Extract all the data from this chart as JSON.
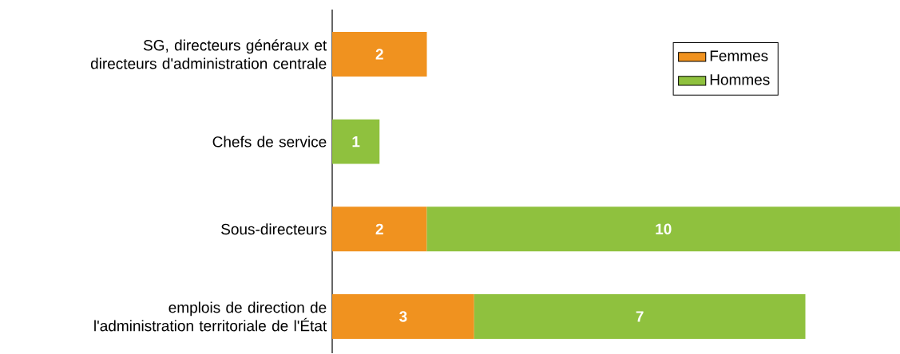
{
  "chart_data": {
    "type": "bar",
    "orientation": "horizontal",
    "stacked": true,
    "data_labels": true,
    "legend": "top right",
    "categories": [
      "SG, directeurs généraux et directeurs d'administration centrale",
      "Chefs de service",
      "Sous-directeurs",
      "emplois de direction de l'administration territoriale de l'État"
    ],
    "series": [
      {
        "name": "Femmes",
        "color": "#f0921f",
        "values": [
          2,
          null,
          2,
          3
        ]
      },
      {
        "name": "Hommes",
        "color": "#8fc13e",
        "values": [
          null,
          1,
          10,
          7
        ]
      }
    ]
  }
}
